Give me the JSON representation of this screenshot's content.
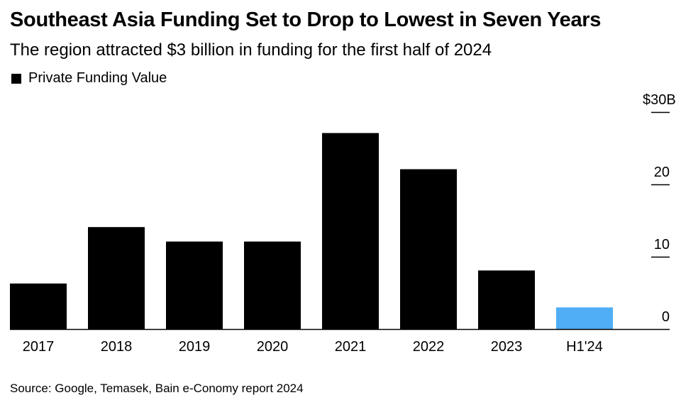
{
  "title": "Southeast Asia Funding Set to Drop to Lowest in Seven Years",
  "subtitle": "The region attracted $3 billion in funding for the first half of 2024",
  "source": "Source: Google, Temasek, Bain e-Conomy report 2024",
  "chart_data": {
    "type": "bar",
    "title": "Southeast Asia Funding Set to Drop to Lowest in Seven Years",
    "subtitle": "The region attracted $3 billion in funding for the first half of 2024",
    "xlabel": "",
    "ylabel": "",
    "ylim": [
      0,
      30
    ],
    "yticks": [
      0,
      10,
      20,
      30
    ],
    "ytick_labels": [
      "0",
      "10",
      "20",
      "$30B"
    ],
    "y_axis_side": "right",
    "legend": [
      {
        "name": "Private Funding Value",
        "color": "#000000"
      }
    ],
    "categories": [
      "2017",
      "2018",
      "2019",
      "2020",
      "2021",
      "2022",
      "2023",
      "H1'24"
    ],
    "values": [
      6.3,
      14.1,
      12.1,
      12.1,
      27.1,
      22.1,
      8.1,
      3.0
    ],
    "colors": [
      "#000000",
      "#000000",
      "#000000",
      "#000000",
      "#000000",
      "#000000",
      "#000000",
      "#4faef6"
    ]
  }
}
